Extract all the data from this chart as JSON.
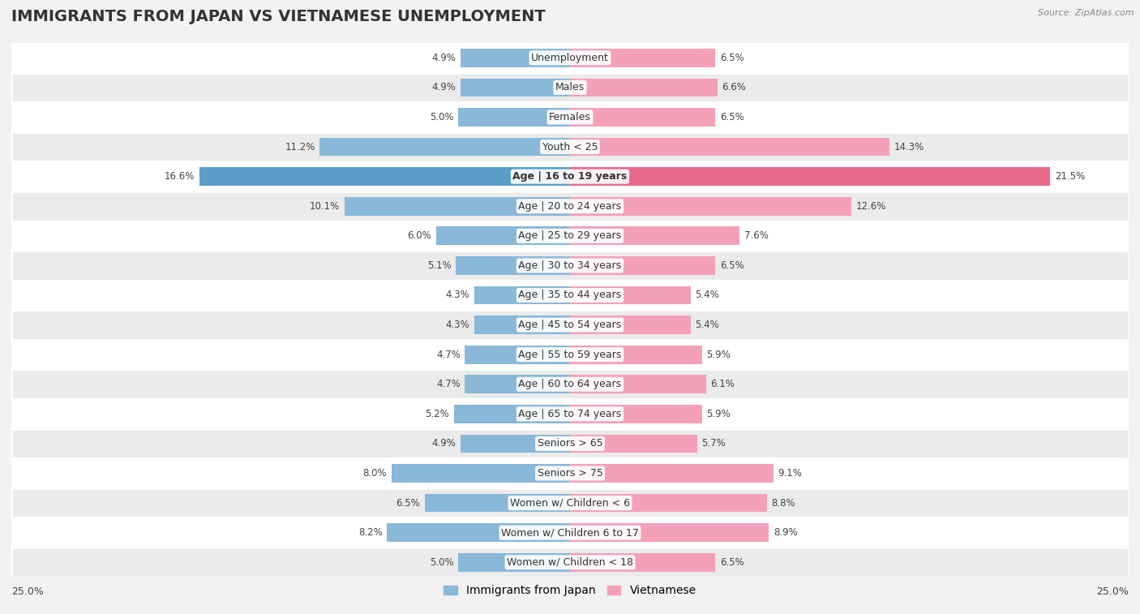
{
  "title": "IMMIGRANTS FROM JAPAN VS VIETNAMESE UNEMPLOYMENT",
  "source": "Source: ZipAtlas.com",
  "categories": [
    "Unemployment",
    "Males",
    "Females",
    "Youth < 25",
    "Age | 16 to 19 years",
    "Age | 20 to 24 years",
    "Age | 25 to 29 years",
    "Age | 30 to 34 years",
    "Age | 35 to 44 years",
    "Age | 45 to 54 years",
    "Age | 55 to 59 years",
    "Age | 60 to 64 years",
    "Age | 65 to 74 years",
    "Seniors > 65",
    "Seniors > 75",
    "Women w/ Children < 6",
    "Women w/ Children 6 to 17",
    "Women w/ Children < 18"
  ],
  "japan_values": [
    4.9,
    4.9,
    5.0,
    11.2,
    16.6,
    10.1,
    6.0,
    5.1,
    4.3,
    4.3,
    4.7,
    4.7,
    5.2,
    4.9,
    8.0,
    6.5,
    8.2,
    5.0
  ],
  "vietnamese_values": [
    6.5,
    6.6,
    6.5,
    14.3,
    21.5,
    12.6,
    7.6,
    6.5,
    5.4,
    5.4,
    5.9,
    6.1,
    5.9,
    5.7,
    9.1,
    8.8,
    8.9,
    6.5
  ],
  "japan_color": "#89b8d9",
  "vietnamese_color": "#f4a0b8",
  "japan_highlight_color": "#5a9ec9",
  "vietnamese_highlight_color": "#e8698a",
  "highlight_row": 4,
  "xlim": 25.0,
  "background_color": "#f2f2f2",
  "row_bg_colors": [
    "#ffffff",
    "#ebebeb"
  ],
  "bar_height": 0.62,
  "title_fontsize": 14,
  "label_fontsize": 9,
  "value_fontsize": 8.5,
  "legend_fontsize": 10,
  "legend_japan": "Immigrants from Japan",
  "legend_vietnamese": "Vietnamese"
}
